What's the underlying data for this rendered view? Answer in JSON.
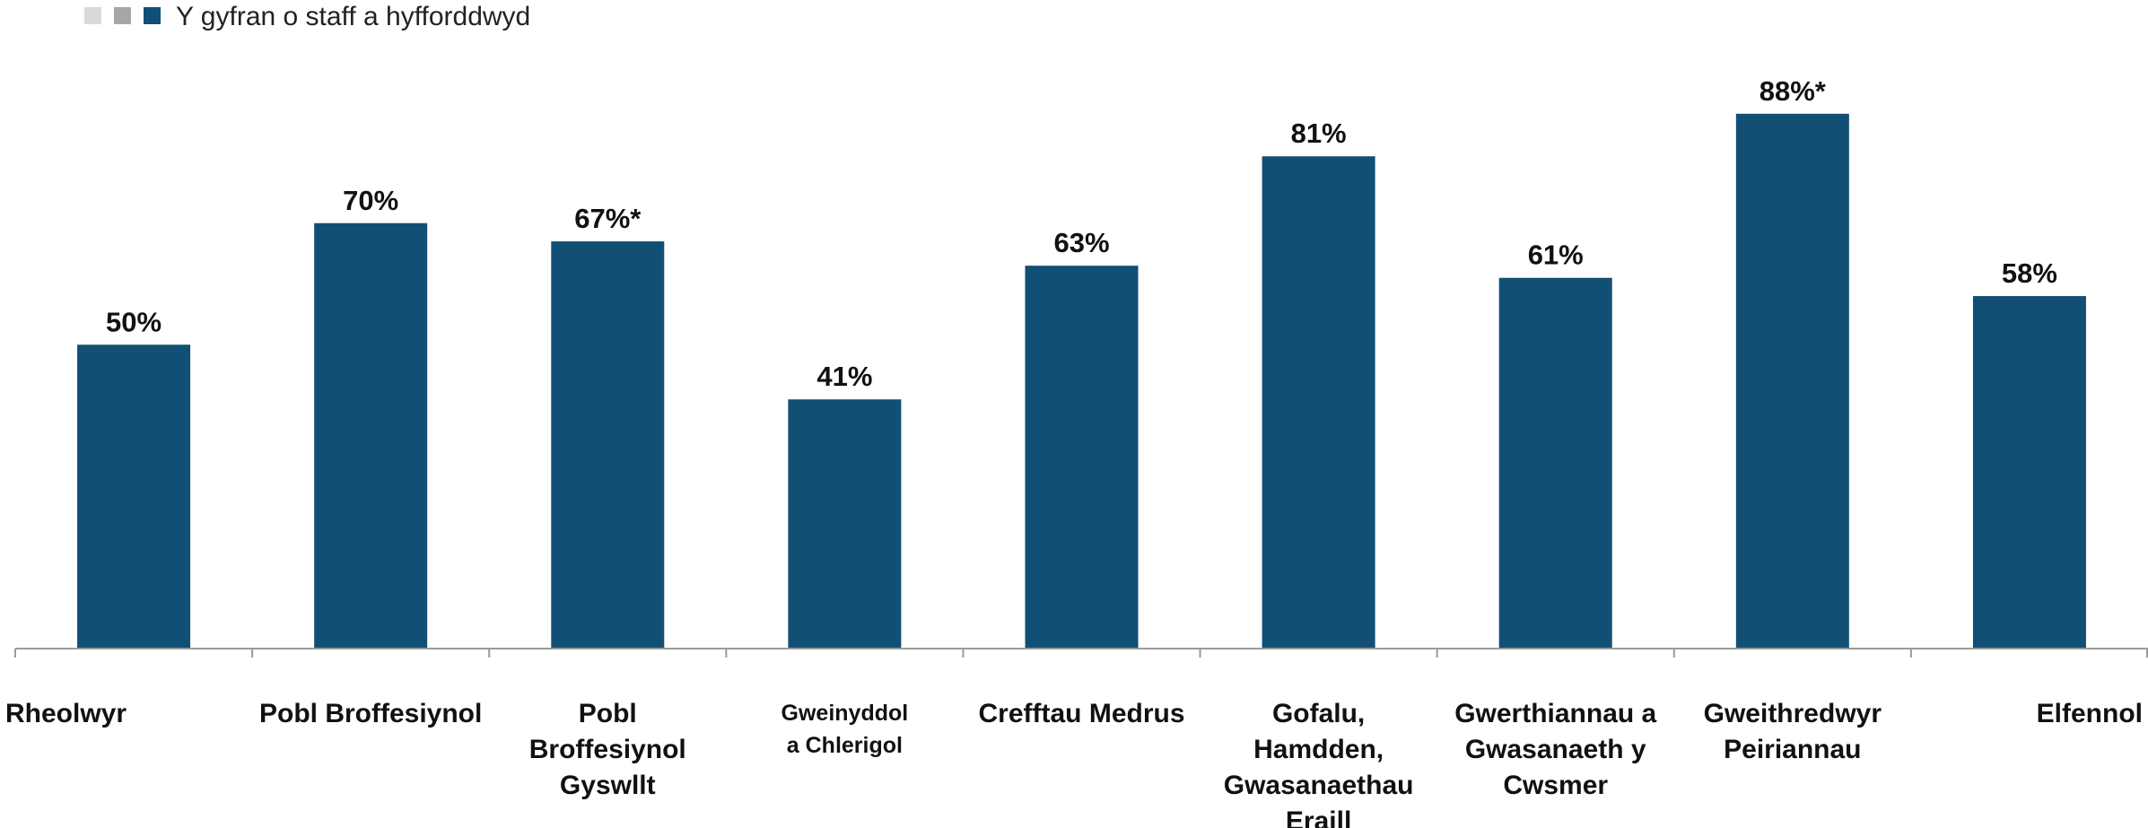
{
  "chart_data": {
    "type": "bar",
    "categories": [
      [
        "Rheolwyr"
      ],
      [
        "Pobl Broffesiynol"
      ],
      [
        "Pobl",
        "Broffesiynol",
        "Gyswllt"
      ],
      [
        "Gweinyddol",
        "a Chlerigol"
      ],
      [
        "Crefftau Medrus"
      ],
      [
        "Gofalu,",
        "Hamdden,",
        "Gwasanaethau",
        "Eraill"
      ],
      [
        "Gwerthiannau a",
        "Gwasanaeth y",
        "Cwsmer"
      ],
      [
        "Gweithredwyr",
        "Peiriannau"
      ],
      [
        "Elfennol"
      ]
    ],
    "series": [
      {
        "name": "Y gyfran o staff a hyfforddwyd",
        "values": [
          50,
          70,
          67,
          41,
          63,
          81,
          61,
          88,
          58
        ],
        "data_labels": [
          "50%",
          "70%",
          "67%*",
          "41%",
          "63%",
          "81%",
          "61%",
          "88%*",
          "58%"
        ]
      }
    ],
    "ylim": [
      0,
      100
    ],
    "grid": false,
    "legend": {
      "placement": "top-left",
      "swatch_colors": [
        "#d9d9d9",
        "#a6a6a6",
        "#124f75"
      ]
    },
    "colors": {
      "bar": "#124f75",
      "axis": "#9a9a9a"
    }
  }
}
